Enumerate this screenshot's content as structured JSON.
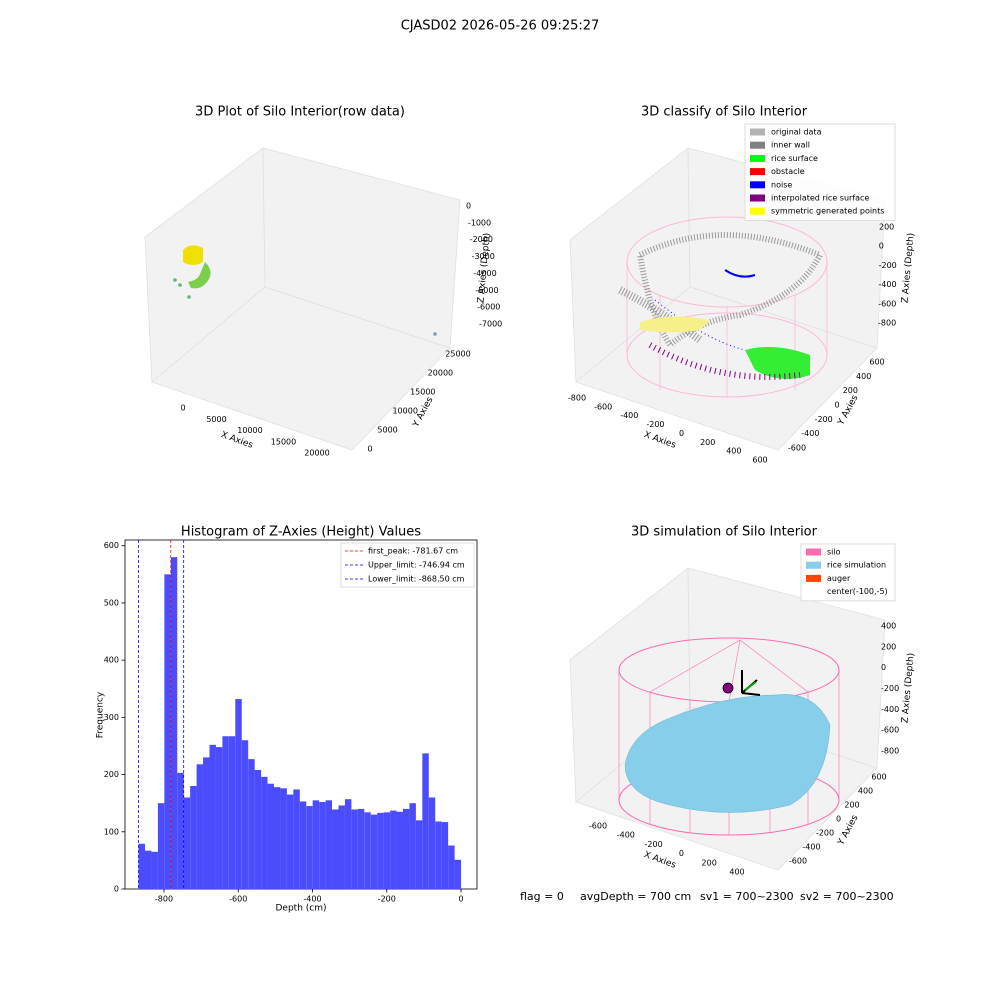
{
  "suptitle": "CJASD02 2026-05-26 09:25:27",
  "chart_data": [
    {
      "type": "scatter3d",
      "title": "3D Plot of Silo Interior(row data)",
      "xlabel": "X Axies",
      "ylabel": "Y Axies",
      "zlabel": "Z Axies (Depth)",
      "xticks": [
        0,
        5000,
        10000,
        15000,
        20000
      ],
      "yticks": [
        0,
        5000,
        10000,
        15000,
        20000,
        25000
      ],
      "zticks": [
        0,
        -1000,
        -2000,
        -3000,
        -4000,
        -5000,
        -6000,
        -7000
      ]
    },
    {
      "type": "scatter3d",
      "title": "3D classify of Silo Interior",
      "xlabel": "X Axies",
      "ylabel": "Y Axies",
      "zlabel": "Z Axies (Depth)",
      "xticks": [
        -800,
        -600,
        -400,
        -200,
        0,
        200,
        400,
        600
      ],
      "yticks": [
        -600,
        -400,
        -200,
        0,
        200,
        400,
        600
      ],
      "zticks": [
        200,
        0,
        -200,
        -400,
        -600,
        -800
      ],
      "legend": [
        {
          "label": "original data",
          "color": "#b3b3b3"
        },
        {
          "label": "inner wall",
          "color": "#808080"
        },
        {
          "label": "rice surface",
          "color": "#00ff00"
        },
        {
          "label": "obstacle",
          "color": "#ff0000"
        },
        {
          "label": "noise",
          "color": "#0000ff"
        },
        {
          "label": "interpolated rice surface",
          "color": "#800080"
        },
        {
          "label": "symmetric generated points",
          "color": "#ffff00"
        }
      ]
    },
    {
      "type": "histogram",
      "title": "Histogram of Z-Axies (Height) Values",
      "xlabel": "Depth (cm)",
      "ylabel": "Frequency",
      "color": "#4c4cff",
      "bins": [
        -868.5,
        -851.13,
        -833.76,
        -816.39,
        -799.02,
        -781.65,
        -764.28,
        -746.91,
        -729.54,
        -712.17,
        -694.8,
        -677.43,
        -660.06,
        -642.69,
        -625.32,
        -607.95,
        -590.58,
        -573.21,
        -555.84,
        -538.47,
        -521.1,
        -503.73,
        -486.36,
        -468.99,
        -451.62,
        -434.25,
        -416.88,
        -399.51,
        -382.14,
        -364.77,
        -347.4,
        -330.03,
        -312.66,
        -295.29,
        -277.92,
        -260.55,
        -243.18,
        -225.81,
        -208.44,
        -191.07,
        -173.7,
        -156.33,
        -138.96,
        -121.59,
        -104.22,
        -86.85,
        -69.48,
        -52.11,
        -34.74,
        -17.37,
        0
      ],
      "values": [
        79,
        67,
        65,
        150,
        550,
        580,
        203,
        160,
        180,
        218,
        230,
        252,
        248,
        267,
        267,
        332,
        260,
        227,
        208,
        196,
        184,
        178,
        176,
        165,
        174,
        153,
        145,
        155,
        152,
        155,
        139,
        146,
        157,
        139,
        140,
        134,
        130,
        133,
        134,
        137,
        135,
        140,
        150,
        120,
        237,
        160,
        118,
        117,
        76,
        51
      ],
      "xlim": [
        -905,
        43
      ],
      "ylim": [
        0,
        610
      ],
      "xticks": [
        -800,
        -600,
        -400,
        -200,
        0
      ],
      "yticks": [
        0,
        100,
        200,
        300,
        400,
        500,
        600
      ],
      "vlines": [
        {
          "label": "first_peak: -781.67 cm",
          "value": -781.67,
          "color": "#ff0000"
        },
        {
          "label": "Upper_limit: -746.94 cm",
          "value": -746.94,
          "color": "#0000ff"
        },
        {
          "label": "Lower_limit: -868.50 cm",
          "value": -868.5,
          "color": "#0000ff"
        }
      ]
    },
    {
      "type": "surface3d",
      "title": "3D simulation of Silo Interior",
      "xlabel": "X Axies",
      "ylabel": "Y Axies",
      "zlabel": "Z Axies (Depth)",
      "xticks": [
        -600,
        -400,
        -200,
        0,
        200,
        400
      ],
      "yticks": [
        -600,
        -400,
        -200,
        0,
        200,
        400,
        600
      ],
      "zticks": [
        400,
        200,
        0,
        -200,
        -400,
        -600,
        -800
      ],
      "legend": [
        {
          "label": "silo",
          "color": "#ff69b4"
        },
        {
          "label": "rice simulation",
          "color": "#87ceeb"
        },
        {
          "label": "auger",
          "color": "#ff4500"
        },
        {
          "label": "center(-100,-5)",
          "color": "#ffffff"
        }
      ]
    }
  ],
  "footer": [
    "flag = 0",
    "avgDepth = 700 cm",
    "sv1 = 700~2300",
    "sv2 = 700~2300"
  ]
}
